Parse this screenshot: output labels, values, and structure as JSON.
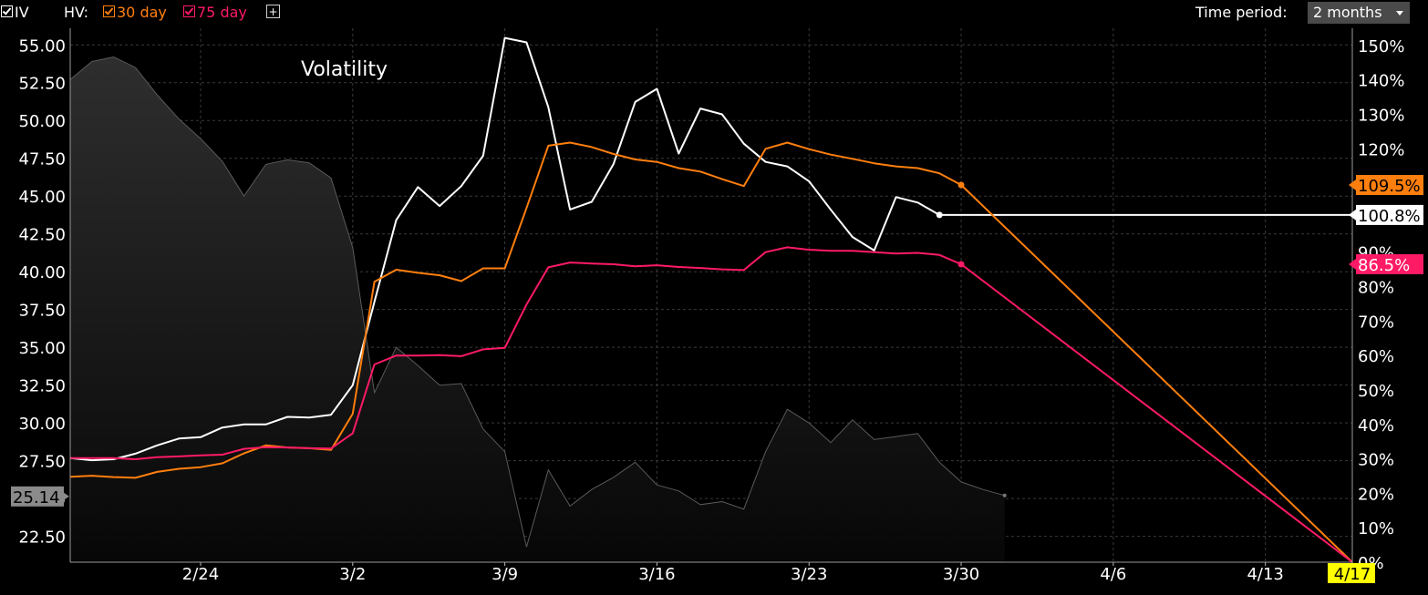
{
  "toolbar": {
    "iv_label": "IV",
    "hv_label": "HV:",
    "hv30_label": "30 day",
    "hv75_label": "75 day",
    "add_label": "+",
    "period_label": "Time period:",
    "period_value": "2 months"
  },
  "colors": {
    "background": "#000000",
    "iv": "#ffffff",
    "hv30": "#ff7f0e",
    "hv75": "#ff1a66",
    "price_area": "#2a2a2a",
    "grid": "#3a3a3a"
  },
  "chart_data": {
    "type": "line",
    "title": "Volatility",
    "x_tick_labels": [
      "2/24",
      "3/2",
      "3/9",
      "3/16",
      "3/23",
      "3/30",
      "4/6",
      "4/13",
      "4/17"
    ],
    "left_axis": {
      "ylim": [
        20.79,
        56.1
      ],
      "ticks": [
        "22.50",
        "25.00",
        "27.50",
        "30.00",
        "32.50",
        "35.00",
        "37.50",
        "40.00",
        "42.50",
        "45.00",
        "47.50",
        "50.00",
        "52.50",
        "55.00"
      ],
      "last_value": "25.14"
    },
    "right_axis": {
      "ylim": [
        0,
        155
      ],
      "ticks": [
        "0%",
        "10%",
        "20%",
        "30%",
        "40%",
        "50%",
        "60%",
        "70%",
        "80%",
        "90%",
        "100%",
        "110%",
        "120%",
        "130%",
        "140%",
        "150%"
      ]
    },
    "series": [
      {
        "name": "IV",
        "axis": "right",
        "color": "#ffffff",
        "last_label": "100.8%",
        "points": [
          [
            "2/18",
            30.2
          ],
          [
            "2/19",
            29.6
          ],
          [
            "2/20",
            29.9
          ],
          [
            "2/21",
            31.5
          ],
          [
            "2/22",
            33.9
          ],
          [
            "2/23",
            35.9
          ],
          [
            "2/24",
            36.3
          ],
          [
            "2/25",
            39.1
          ],
          [
            "2/26",
            40.0
          ],
          [
            "2/27",
            40.0
          ],
          [
            "2/28",
            42.2
          ],
          [
            "2/29",
            42.0
          ],
          [
            "3/1",
            42.8
          ],
          [
            "3/2",
            51.4
          ],
          [
            "3/3",
            75.6
          ],
          [
            "3/4",
            99.3
          ],
          [
            "3/5",
            108.9
          ],
          [
            "3/6",
            103.4
          ],
          [
            "3/7",
            109.2
          ],
          [
            "3/8",
            118.0
          ],
          [
            "3/9",
            152.2
          ],
          [
            "3/10",
            150.9
          ],
          [
            "3/11",
            132.1
          ],
          [
            "3/12",
            102.4
          ],
          [
            "3/13",
            104.6
          ],
          [
            "3/14",
            115.6
          ],
          [
            "3/15",
            133.6
          ],
          [
            "3/16",
            137.4
          ],
          [
            "3/17",
            118.6
          ],
          [
            "3/18",
            131.7
          ],
          [
            "3/19",
            130.0
          ],
          [
            "3/20",
            121.5
          ],
          [
            "3/21",
            116.2
          ],
          [
            "3/22",
            114.9
          ],
          [
            "3/23",
            110.6
          ],
          [
            "3/24",
            102.3
          ],
          [
            "3/25",
            94.4
          ],
          [
            "3/26",
            90.5
          ],
          [
            "3/27",
            106.0
          ],
          [
            "3/28",
            104.4
          ],
          [
            "3/29",
            100.8
          ],
          [
            "4/17",
            100.8
          ]
        ]
      },
      {
        "name": "30 day",
        "axis": "right",
        "color": "#ff7f0e",
        "last_label": "109.5%",
        "points": [
          [
            "2/18",
            24.8
          ],
          [
            "2/19",
            25.1
          ],
          [
            "2/20",
            24.7
          ],
          [
            "2/21",
            24.5
          ],
          [
            "2/22",
            26.2
          ],
          [
            "2/23",
            27.1
          ],
          [
            "2/24",
            27.6
          ],
          [
            "2/25",
            28.7
          ],
          [
            "2/26",
            31.6
          ],
          [
            "2/27",
            33.9
          ],
          [
            "2/28",
            33.3
          ],
          [
            "2/29",
            33.1
          ],
          [
            "3/1",
            32.6
          ],
          [
            "3/2",
            43.1
          ],
          [
            "3/3",
            81.4
          ],
          [
            "3/4",
            84.9
          ],
          [
            "3/5",
            84.0
          ],
          [
            "3/6",
            83.3
          ],
          [
            "3/7",
            81.6
          ],
          [
            "3/8",
            85.3
          ],
          [
            "3/9",
            85.3
          ],
          [
            "3/10",
            102.8
          ],
          [
            "3/11",
            120.9
          ],
          [
            "3/12",
            121.8
          ],
          [
            "3/13",
            120.5
          ],
          [
            "3/14",
            118.5
          ],
          [
            "3/15",
            116.9
          ],
          [
            "3/16",
            116.2
          ],
          [
            "3/17",
            114.4
          ],
          [
            "3/18",
            113.4
          ],
          [
            "3/19",
            111.2
          ],
          [
            "3/20",
            109.2
          ],
          [
            "3/21",
            120.0
          ],
          [
            "3/22",
            121.8
          ],
          [
            "3/23",
            119.9
          ],
          [
            "3/24",
            118.3
          ],
          [
            "3/25",
            117.1
          ],
          [
            "3/26",
            115.8
          ],
          [
            "3/27",
            114.9
          ],
          [
            "3/28",
            114.4
          ],
          [
            "3/29",
            112.9
          ],
          [
            "3/30",
            109.5
          ],
          [
            "4/17",
            0.0
          ]
        ]
      },
      {
        "name": "75 day",
        "axis": "right",
        "color": "#ff1a66",
        "last_label": "86.5%",
        "points": [
          [
            "2/18",
            30.2
          ],
          [
            "2/19",
            30.2
          ],
          [
            "2/20",
            30.2
          ],
          [
            "2/21",
            29.9
          ],
          [
            "2/22",
            30.5
          ],
          [
            "2/23",
            30.7
          ],
          [
            "2/24",
            31.0
          ],
          [
            "2/25",
            31.2
          ],
          [
            "2/26",
            32.9
          ],
          [
            "2/27",
            33.4
          ],
          [
            "2/28",
            33.3
          ],
          [
            "2/29",
            33.1
          ],
          [
            "3/1",
            33.0
          ],
          [
            "3/2",
            37.4
          ],
          [
            "3/3",
            57.4
          ],
          [
            "3/4",
            60.0
          ],
          [
            "3/5",
            60.0
          ],
          [
            "3/6",
            60.1
          ],
          [
            "3/7",
            59.8
          ],
          [
            "3/8",
            61.8
          ],
          [
            "3/9",
            62.2
          ],
          [
            "3/10",
            74.8
          ],
          [
            "3/11",
            85.6
          ],
          [
            "3/12",
            87.0
          ],
          [
            "3/13",
            86.7
          ],
          [
            "3/14",
            86.5
          ],
          [
            "3/15",
            85.9
          ],
          [
            "3/16",
            86.2
          ],
          [
            "3/17",
            85.7
          ],
          [
            "3/18",
            85.4
          ],
          [
            "3/19",
            85.0
          ],
          [
            "3/20",
            84.8
          ],
          [
            "3/21",
            90.0
          ],
          [
            "3/22",
            91.4
          ],
          [
            "3/23",
            90.7
          ],
          [
            "3/24",
            90.4
          ],
          [
            "3/25",
            90.4
          ],
          [
            "3/26",
            90.0
          ],
          [
            "3/27",
            89.6
          ],
          [
            "3/28",
            89.8
          ],
          [
            "3/29",
            89.2
          ],
          [
            "3/30",
            86.5
          ],
          [
            "4/17",
            0.0
          ]
        ]
      },
      {
        "name": "price",
        "axis": "left",
        "color": "#2a2a2a",
        "area": true,
        "points": [
          [
            "2/18",
            52.7
          ],
          [
            "2/19",
            53.9
          ],
          [
            "2/20",
            54.2
          ],
          [
            "2/21",
            53.5
          ],
          [
            "2/22",
            51.7
          ],
          [
            "2/23",
            50.1
          ],
          [
            "2/24",
            48.8
          ],
          [
            "2/25",
            47.3
          ],
          [
            "2/26",
            45.0
          ],
          [
            "2/27",
            47.1
          ],
          [
            "2/28",
            47.4
          ],
          [
            "2/29",
            47.2
          ],
          [
            "3/1",
            46.2
          ],
          [
            "3/2",
            41.6
          ],
          [
            "3/3",
            32.0
          ],
          [
            "3/4",
            35.0
          ],
          [
            "3/5",
            33.8
          ],
          [
            "3/6",
            32.5
          ],
          [
            "3/7",
            32.6
          ],
          [
            "3/8",
            29.6
          ],
          [
            "3/9",
            28.1
          ],
          [
            "3/10",
            21.8
          ],
          [
            "3/11",
            26.9
          ],
          [
            "3/12",
            24.5
          ],
          [
            "3/13",
            25.6
          ],
          [
            "3/14",
            26.4
          ],
          [
            "3/15",
            27.4
          ],
          [
            "3/16",
            25.9
          ],
          [
            "3/17",
            25.5
          ],
          [
            "3/18",
            24.6
          ],
          [
            "3/19",
            24.8
          ],
          [
            "3/20",
            24.3
          ],
          [
            "3/21",
            28.1
          ],
          [
            "3/22",
            30.9
          ],
          [
            "3/23",
            30.0
          ],
          [
            "3/24",
            28.7
          ],
          [
            "3/25",
            30.2
          ],
          [
            "3/26",
            28.9
          ],
          [
            "3/27",
            29.1
          ],
          [
            "3/28",
            29.3
          ],
          [
            "3/29",
            27.4
          ],
          [
            "3/30",
            26.1
          ],
          [
            "3/31",
            25.6
          ],
          [
            "4/1",
            25.2
          ],
          [
            "4/17",
            25.14
          ]
        ]
      }
    ],
    "grid": true
  }
}
